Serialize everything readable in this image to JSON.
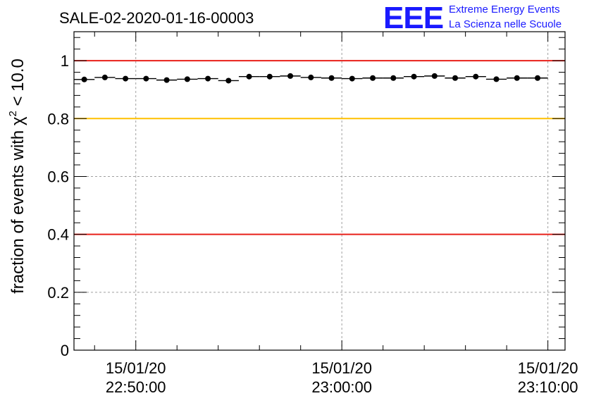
{
  "chart_data": {
    "type": "scatter",
    "title": "SALE-02-2020-01-16-00003",
    "ylabel_main": "fraction of events with ",
    "ylabel_symbol": "χ",
    "ylabel_sup": "2",
    "ylabel_tail": " < 10.0",
    "xlabel": "",
    "ylim": [
      0,
      1.1
    ],
    "xlim": [
      "15/01/20 22:47:00",
      "15/01/20 23:10:50"
    ],
    "yticks": [
      {
        "value": 0,
        "label": "0"
      },
      {
        "value": 0.2,
        "label": "0.2"
      },
      {
        "value": 0.4,
        "label": "0.4"
      },
      {
        "value": 0.6,
        "label": "0.6"
      },
      {
        "value": 0.8,
        "label": "0.8"
      },
      {
        "value": 1,
        "label": "1"
      }
    ],
    "xticks": [
      {
        "time": "22:50:00",
        "date_label": "15/01/20",
        "time_label": "22:50:00"
      },
      {
        "time": "23:00:00",
        "date_label": "15/01/20",
        "time_label": "23:00:00"
      },
      {
        "time": "23:10:00",
        "date_label": "15/01/20",
        "time_label": "23:10:00"
      }
    ],
    "grid": true,
    "reference_lines": [
      {
        "y": 1.0,
        "color": "#e8201a"
      },
      {
        "y": 0.8,
        "color": "#ffc000"
      },
      {
        "y": 0.4,
        "color": "#e8201a"
      }
    ],
    "series": [
      {
        "marker_color": "#000000",
        "points": [
          {
            "x": "22:47:30",
            "y": 0.935
          },
          {
            "x": "22:48:30",
            "y": 0.942
          },
          {
            "x": "22:49:30",
            "y": 0.938
          },
          {
            "x": "22:50:30",
            "y": 0.938
          },
          {
            "x": "22:51:30",
            "y": 0.933
          },
          {
            "x": "22:52:30",
            "y": 0.936
          },
          {
            "x": "22:53:30",
            "y": 0.938
          },
          {
            "x": "22:54:30",
            "y": 0.931
          },
          {
            "x": "22:55:30",
            "y": 0.945
          },
          {
            "x": "22:56:30",
            "y": 0.945
          },
          {
            "x": "22:57:30",
            "y": 0.947
          },
          {
            "x": "22:58:30",
            "y": 0.942
          },
          {
            "x": "22:59:30",
            "y": 0.94
          },
          {
            "x": "23:00:30",
            "y": 0.938
          },
          {
            "x": "23:01:30",
            "y": 0.94
          },
          {
            "x": "23:02:30",
            "y": 0.94
          },
          {
            "x": "23:03:30",
            "y": 0.945
          },
          {
            "x": "23:04:30",
            "y": 0.947
          },
          {
            "x": "23:05:30",
            "y": 0.94
          },
          {
            "x": "23:06:30",
            "y": 0.945
          },
          {
            "x": "23:07:30",
            "y": 0.936
          },
          {
            "x": "23:08:30",
            "y": 0.94
          },
          {
            "x": "23:09:30",
            "y": 0.94
          }
        ]
      }
    ]
  },
  "logo": {
    "mark": "EEE",
    "line1": "Extreme Energy Events",
    "line2": "La Scienza nelle Scuole",
    "color": "#1a1aff"
  }
}
